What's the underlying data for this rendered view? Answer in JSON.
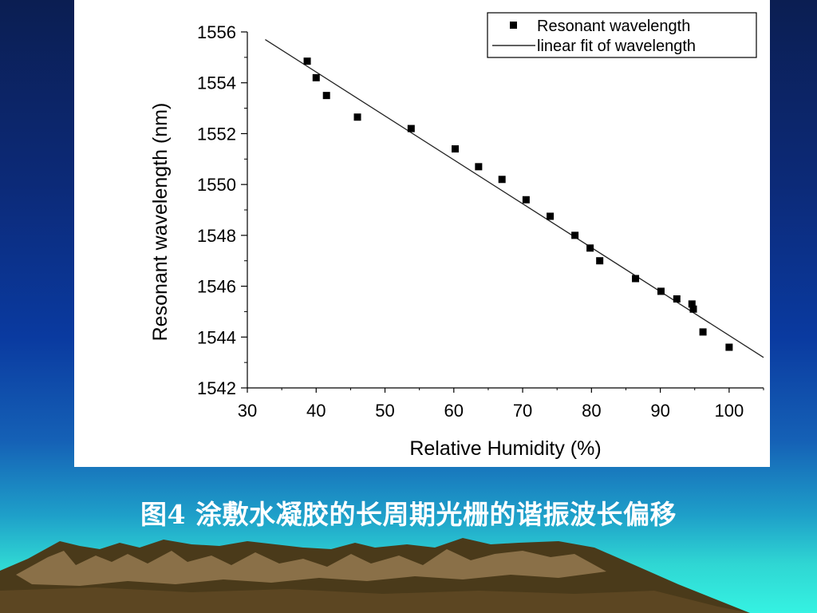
{
  "slide": {
    "caption": "图4 涂敷水凝胶的长周期光栅的谐振波长偏移"
  },
  "colors": {
    "background_top": "#0b1e52",
    "background_bottom": "#35f2e2",
    "panel": "#ffffff",
    "mountain_dark": "#4a3a1a",
    "mountain_light": "#8a7048",
    "caption_text": "#ffffff"
  },
  "chart_data": {
    "type": "scatter",
    "title": "",
    "xlabel": "Relative Humidity (%)",
    "ylabel": "Resonant wavelength (nm)",
    "xlim": [
      30,
      105
    ],
    "ylim": [
      1542,
      1556
    ],
    "xticks": [
      30,
      40,
      50,
      60,
      70,
      80,
      90,
      100
    ],
    "yticks": [
      1542,
      1544,
      1546,
      1548,
      1550,
      1552,
      1554,
      1556
    ],
    "grid": false,
    "legend_position": "top-right",
    "series": [
      {
        "name": "Resonant wavelength",
        "marker": "square",
        "points": [
          {
            "x": 38.7,
            "y": 1554.85
          },
          {
            "x": 40.0,
            "y": 1554.2
          },
          {
            "x": 41.5,
            "y": 1553.5
          },
          {
            "x": 46.0,
            "y": 1552.65
          },
          {
            "x": 53.8,
            "y": 1552.2
          },
          {
            "x": 60.2,
            "y": 1551.4
          },
          {
            "x": 63.6,
            "y": 1550.7
          },
          {
            "x": 67.0,
            "y": 1550.2
          },
          {
            "x": 70.5,
            "y": 1549.4
          },
          {
            "x": 74.0,
            "y": 1548.75
          },
          {
            "x": 77.6,
            "y": 1548.0
          },
          {
            "x": 79.8,
            "y": 1547.5
          },
          {
            "x": 81.2,
            "y": 1547.0
          },
          {
            "x": 86.4,
            "y": 1546.3
          },
          {
            "x": 90.1,
            "y": 1545.8
          },
          {
            "x": 92.4,
            "y": 1545.5
          },
          {
            "x": 94.6,
            "y": 1545.3
          },
          {
            "x": 94.8,
            "y": 1545.1
          },
          {
            "x": 96.2,
            "y": 1544.2
          },
          {
            "x": 100.0,
            "y": 1543.6
          }
        ]
      },
      {
        "name": "linear fit of wavelength",
        "style": "line",
        "points": [
          {
            "x": 32.6,
            "y": 1555.7
          },
          {
            "x": 105.0,
            "y": 1543.2
          }
        ]
      }
    ]
  }
}
